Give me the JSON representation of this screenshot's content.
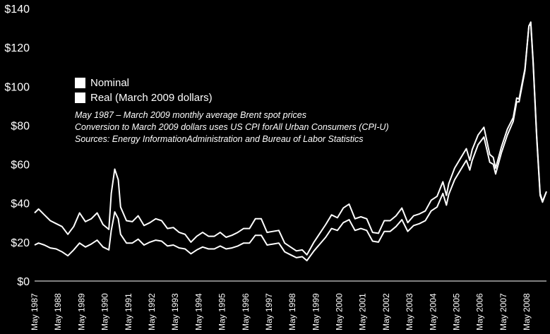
{
  "chart_data": {
    "type": "line",
    "y_tick_labels": [
      "$0",
      "$20",
      "$40",
      "$60",
      "$80",
      "$100",
      "$120",
      "$140"
    ],
    "ylim": [
      0,
      140
    ],
    "x_tick_labels": [
      "May 1987",
      "May 1988",
      "May 1989",
      "May 1990",
      "May 1991",
      "May 1992",
      "May 1993",
      "May 1994",
      "May 1995",
      "May 1996",
      "May 1997",
      "May 1998",
      "May 1999",
      "May 2000",
      "May 2001",
      "May 2002",
      "May 2003",
      "May 2004",
      "May 2005",
      "May 2006",
      "May 2007",
      "May 2008"
    ],
    "x_range": [
      1987.33,
      2009.17
    ],
    "grid": false,
    "legend_placement": "upper-left",
    "notes": [
      "May 1987 – March 2009 monthly average Brent spot prices",
      "Conversion to March 2009 dollars uses US CPI forAll Urban Consumers (CPI-U)",
      "Sources: Energy InformationAdministration and Bureau of Labor Statistics"
    ],
    "series": [
      {
        "name": "Nominal",
        "color": "#ffffff",
        "points": [
          [
            1987.33,
            18.5
          ],
          [
            1987.5,
            19.5
          ],
          [
            1987.75,
            18.5
          ],
          [
            1988.0,
            17
          ],
          [
            1988.25,
            16.5
          ],
          [
            1988.5,
            15
          ],
          [
            1988.75,
            13
          ],
          [
            1989.0,
            16
          ],
          [
            1989.25,
            19.5
          ],
          [
            1989.5,
            17.5
          ],
          [
            1989.75,
            19
          ],
          [
            1990.0,
            21
          ],
          [
            1990.25,
            17.5
          ],
          [
            1990.5,
            16
          ],
          [
            1990.6,
            26
          ],
          [
            1990.75,
            35.5
          ],
          [
            1990.9,
            32
          ],
          [
            1991.0,
            24
          ],
          [
            1991.25,
            19.5
          ],
          [
            1991.5,
            19.5
          ],
          [
            1991.75,
            21.5
          ],
          [
            1992.0,
            18.5
          ],
          [
            1992.25,
            20
          ],
          [
            1992.5,
            21
          ],
          [
            1992.75,
            20.5
          ],
          [
            1993.0,
            18
          ],
          [
            1993.25,
            18.5
          ],
          [
            1993.5,
            17
          ],
          [
            1993.75,
            16.5
          ],
          [
            1994.0,
            14
          ],
          [
            1994.25,
            16
          ],
          [
            1994.5,
            17.5
          ],
          [
            1994.75,
            16.5
          ],
          [
            1995.0,
            16.5
          ],
          [
            1995.25,
            18
          ],
          [
            1995.5,
            16.5
          ],
          [
            1995.75,
            17
          ],
          [
            1996.0,
            18
          ],
          [
            1996.25,
            19.5
          ],
          [
            1996.5,
            19.5
          ],
          [
            1996.75,
            23.5
          ],
          [
            1997.0,
            23.5
          ],
          [
            1997.25,
            18.5
          ],
          [
            1997.5,
            19
          ],
          [
            1997.75,
            19.5
          ],
          [
            1998.0,
            15
          ],
          [
            1998.25,
            13.5
          ],
          [
            1998.5,
            12
          ],
          [
            1998.75,
            12.5
          ],
          [
            1998.95,
            10.5
          ],
          [
            1999.25,
            15.5
          ],
          [
            1999.5,
            19
          ],
          [
            1999.75,
            22.5
          ],
          [
            2000.0,
            27
          ],
          [
            2000.25,
            26
          ],
          [
            2000.5,
            30
          ],
          [
            2000.75,
            31.5
          ],
          [
            2001.0,
            26
          ],
          [
            2001.25,
            27
          ],
          [
            2001.5,
            26
          ],
          [
            2001.75,
            20.5
          ],
          [
            2002.0,
            20
          ],
          [
            2002.25,
            25.5
          ],
          [
            2002.5,
            25.5
          ],
          [
            2002.75,
            28
          ],
          [
            2003.0,
            31.5
          ],
          [
            2003.25,
            25.5
          ],
          [
            2003.5,
            28.5
          ],
          [
            2003.75,
            29.5
          ],
          [
            2004.0,
            31
          ],
          [
            2004.25,
            36
          ],
          [
            2004.5,
            38
          ],
          [
            2004.75,
            45
          ],
          [
            2004.9,
            39
          ],
          [
            2005.0,
            44.5
          ],
          [
            2005.25,
            52
          ],
          [
            2005.5,
            57
          ],
          [
            2005.75,
            62
          ],
          [
            2005.9,
            57
          ],
          [
            2006.0,
            62
          ],
          [
            2006.25,
            70
          ],
          [
            2006.5,
            74
          ],
          [
            2006.75,
            61
          ],
          [
            2006.9,
            60
          ],
          [
            2007.0,
            55
          ],
          [
            2007.25,
            66
          ],
          [
            2007.5,
            75
          ],
          [
            2007.75,
            82
          ],
          [
            2007.9,
            92
          ],
          [
            2008.0,
            92
          ],
          [
            2008.25,
            108
          ],
          [
            2008.42,
            131
          ],
          [
            2008.5,
            133
          ],
          [
            2008.6,
            113
          ],
          [
            2008.75,
            75
          ],
          [
            2008.9,
            45
          ],
          [
            2009.0,
            41
          ],
          [
            2009.17,
            46
          ]
        ]
      },
      {
        "name": "Real (March 2009 dollars)",
        "color": "#ffffff",
        "points": [
          [
            1987.33,
            35
          ],
          [
            1987.5,
            37
          ],
          [
            1987.75,
            34
          ],
          [
            1988.0,
            31
          ],
          [
            1988.25,
            29.5
          ],
          [
            1988.5,
            28
          ],
          [
            1988.75,
            24
          ],
          [
            1989.0,
            28
          ],
          [
            1989.25,
            35
          ],
          [
            1989.5,
            30.5
          ],
          [
            1989.75,
            32
          ],
          [
            1990.0,
            35
          ],
          [
            1990.25,
            29
          ],
          [
            1990.5,
            26.5
          ],
          [
            1990.6,
            45
          ],
          [
            1990.75,
            57.5
          ],
          [
            1990.9,
            52
          ],
          [
            1991.0,
            38
          ],
          [
            1991.25,
            31
          ],
          [
            1991.5,
            30.5
          ],
          [
            1991.75,
            33.5
          ],
          [
            1992.0,
            28.5
          ],
          [
            1992.25,
            30
          ],
          [
            1992.5,
            32
          ],
          [
            1992.75,
            31
          ],
          [
            1993.0,
            27
          ],
          [
            1993.25,
            27.5
          ],
          [
            1993.5,
            25
          ],
          [
            1993.75,
            24
          ],
          [
            1994.0,
            20
          ],
          [
            1994.25,
            23
          ],
          [
            1994.5,
            25
          ],
          [
            1994.75,
            23
          ],
          [
            1995.0,
            23
          ],
          [
            1995.25,
            25
          ],
          [
            1995.5,
            22.5
          ],
          [
            1995.75,
            23.5
          ],
          [
            1996.0,
            25
          ],
          [
            1996.25,
            27
          ],
          [
            1996.5,
            27
          ],
          [
            1996.75,
            32
          ],
          [
            1997.0,
            32
          ],
          [
            1997.25,
            25
          ],
          [
            1997.5,
            25.5
          ],
          [
            1997.75,
            26
          ],
          [
            1998.0,
            19.5
          ],
          [
            1998.25,
            17.5
          ],
          [
            1998.5,
            15.5
          ],
          [
            1998.75,
            16
          ],
          [
            1998.95,
            13.5
          ],
          [
            1999.25,
            20
          ],
          [
            1999.5,
            24.5
          ],
          [
            1999.75,
            29
          ],
          [
            2000.0,
            34
          ],
          [
            2000.25,
            32.5
          ],
          [
            2000.5,
            37.5
          ],
          [
            2000.75,
            39.5
          ],
          [
            2001.0,
            32
          ],
          [
            2001.25,
            33
          ],
          [
            2001.5,
            32
          ],
          [
            2001.75,
            25
          ],
          [
            2002.0,
            24.5
          ],
          [
            2002.25,
            31
          ],
          [
            2002.5,
            31
          ],
          [
            2002.75,
            33.5
          ],
          [
            2003.0,
            37.5
          ],
          [
            2003.25,
            30
          ],
          [
            2003.5,
            33.5
          ],
          [
            2003.75,
            34.5
          ],
          [
            2004.0,
            36
          ],
          [
            2004.25,
            41.5
          ],
          [
            2004.5,
            43.5
          ],
          [
            2004.75,
            51
          ],
          [
            2004.9,
            44
          ],
          [
            2005.0,
            50
          ],
          [
            2005.25,
            58
          ],
          [
            2005.5,
            63
          ],
          [
            2005.75,
            68
          ],
          [
            2005.9,
            62
          ],
          [
            2006.0,
            67.5
          ],
          [
            2006.25,
            75
          ],
          [
            2006.5,
            79
          ],
          [
            2006.75,
            65
          ],
          [
            2006.9,
            63.5
          ],
          [
            2007.0,
            58
          ],
          [
            2007.25,
            69
          ],
          [
            2007.5,
            78
          ],
          [
            2007.75,
            84
          ],
          [
            2007.9,
            94
          ],
          [
            2008.0,
            93.5
          ],
          [
            2008.25,
            109
          ],
          [
            2008.42,
            131
          ],
          [
            2008.5,
            132
          ],
          [
            2008.6,
            112
          ],
          [
            2008.75,
            74
          ],
          [
            2008.9,
            44
          ],
          [
            2009.0,
            40.5
          ],
          [
            2009.17,
            46
          ]
        ]
      }
    ]
  }
}
